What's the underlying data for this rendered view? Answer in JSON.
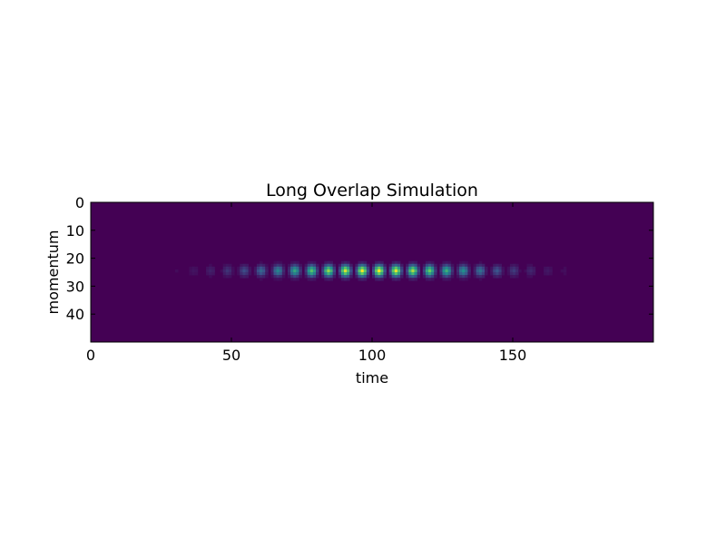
{
  "chart_data": {
    "type": "heatmap",
    "title": "Long Overlap Simulation",
    "xlabel": "time",
    "ylabel": "momentum",
    "xlim": [
      0,
      200
    ],
    "ylim": [
      50,
      0
    ],
    "x_ticks": [
      0,
      50,
      100,
      150
    ],
    "y_ticks": [
      0,
      10,
      20,
      30,
      40
    ],
    "grid": false,
    "colormap": "viridis",
    "background_color": "#440154",
    "time_steps": 200,
    "momentum_bins": 50,
    "band_center_momentum": 24.5,
    "band_halfwidth_momentum": 2.5,
    "envelope_center_time": 100,
    "envelope_sigma_time": 38,
    "oscillation_period_time": 6,
    "peak_value": 1.0
  }
}
